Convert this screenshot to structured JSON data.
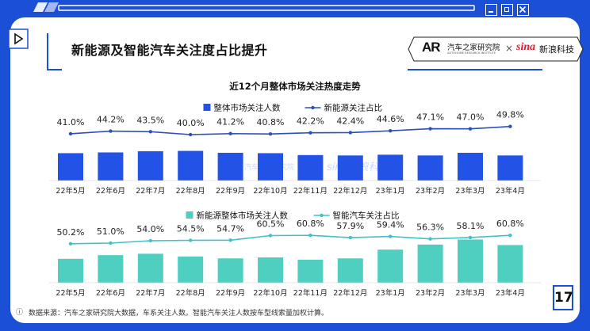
{
  "window_controls": [
    {
      "name": "minimize",
      "icon": "minimize-icon"
    },
    {
      "name": "restore",
      "icon": "restore-icon"
    },
    {
      "name": "close",
      "icon": "close-icon"
    }
  ],
  "title": "新能源及智能汽车关注度占比提升",
  "logo": {
    "brand_mark": "AR",
    "brand_name": "汽车之家研究院",
    "brand_sub": "AUTOHOME RESEARCH INSTITUTE",
    "separator": "×",
    "partner_mark": "sina",
    "partner_name": "新浪科技"
  },
  "watermark": {
    "left": "汽车之家研究院",
    "right": "sina新浪科技"
  },
  "page_number": "17",
  "footnote": {
    "icon": "info-icon",
    "text": "数据来源：汽车之家研究院大数据，车系关注人数。智能汽车关注人数按车型线索量加权计算。"
  },
  "colors": {
    "frame": "#1a4fd6",
    "bar_top": "#2252e6",
    "line_top": "#2d4fb7",
    "bar_bottom": "#4ecfc0",
    "line_bottom": "#40c0c8"
  },
  "chart_data": [
    {
      "type": "bar",
      "title": "近12个月整体市场关注热度走势",
      "categories": [
        "22年5月",
        "22年6月",
        "22年7月",
        "22年8月",
        "22年9月",
        "22年10月",
        "22年11月",
        "22年12月",
        "23年1月",
        "23年2月",
        "23年3月",
        "23年4月"
      ],
      "series": [
        {
          "name": "整体市场关注人数",
          "type": "bar",
          "values": [
            72,
            74,
            77,
            78,
            73,
            72,
            67,
            66,
            68,
            66,
            73,
            66
          ]
        },
        {
          "name": "新能源关注占比",
          "type": "line",
          "values": [
            41.0,
            44.2,
            43.5,
            40.0,
            41.2,
            40.8,
            42.2,
            42.4,
            44.6,
            47.1,
            47.0,
            49.8
          ],
          "labels": [
            "41.0%",
            "44.2%",
            "43.5%",
            "40.0%",
            "41.2%",
            "40.8%",
            "42.2%",
            "42.4%",
            "44.6%",
            "47.1%",
            "47.0%",
            "49.8%"
          ]
        }
      ],
      "legend": "top-center",
      "grid": false
    },
    {
      "type": "bar",
      "title": "",
      "categories": [
        "22年5月",
        "22年6月",
        "22年7月",
        "22年8月",
        "22年9月",
        "22年10月",
        "22年11月",
        "22年12月",
        "23年1月",
        "23年2月",
        "23年3月",
        "23年4月"
      ],
      "series": [
        {
          "name": "新能源整体市场关注人数",
          "type": "bar",
          "values": [
            52,
            60,
            63,
            57,
            53,
            55,
            50,
            53,
            72,
            83,
            94,
            82
          ]
        },
        {
          "name": "智能汽车关注占比",
          "type": "line",
          "values": [
            50.2,
            51.0,
            54.0,
            54.5,
            54.7,
            60.5,
            60.8,
            57.9,
            59.4,
            56.3,
            58.1,
            60.8
          ],
          "labels": [
            "50.2%",
            "51.0%",
            "54.0%",
            "54.5%",
            "54.7%",
            "60.5%",
            "60.8%",
            "57.9%",
            "59.4%",
            "56.3%",
            "58.1%",
            "60.8%"
          ]
        }
      ],
      "legend": "top-center",
      "grid": false
    }
  ]
}
